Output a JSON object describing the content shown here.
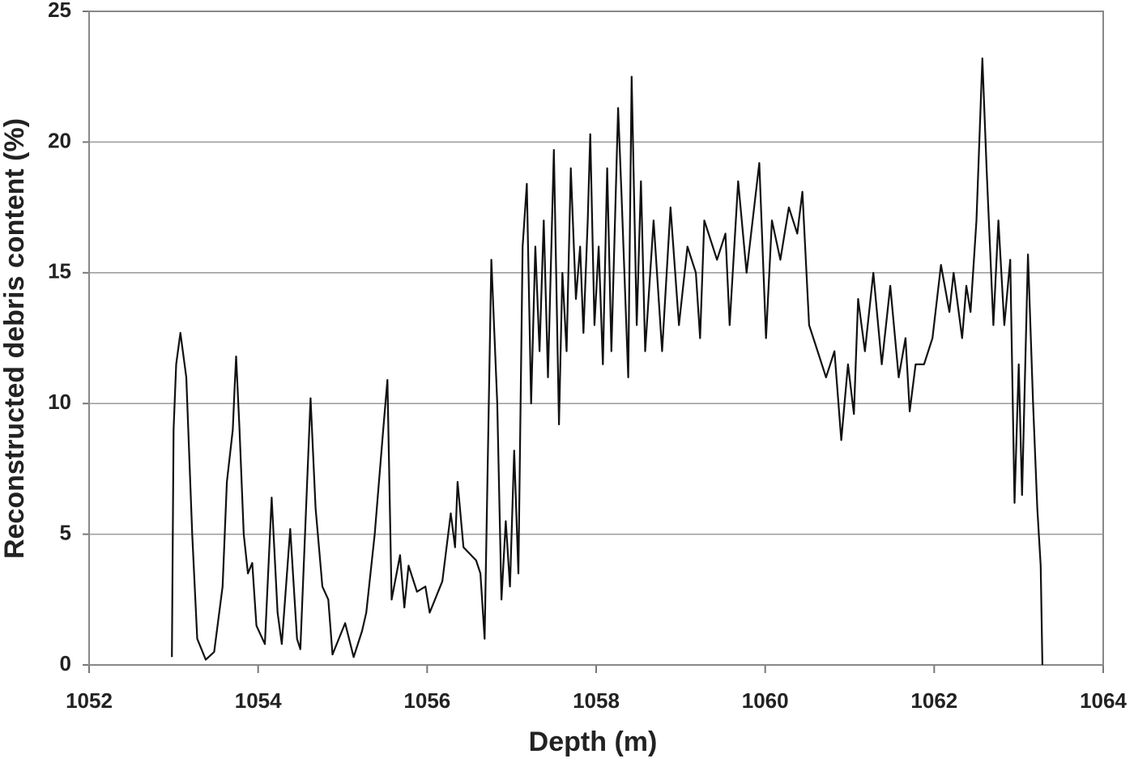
{
  "chart_data": {
    "type": "line",
    "xlabel": "Depth (m)",
    "ylabel": "Reconstructed debris content (%)",
    "xlim": [
      1052,
      1064
    ],
    "xticks": [
      1052,
      1054,
      1056,
      1058,
      1060,
      1062,
      1064
    ],
    "ylim": [
      0,
      25
    ],
    "yticks": [
      0,
      5,
      10,
      15,
      20,
      25
    ],
    "grid": true,
    "x": [
      1052.98,
      1053.0,
      1053.03,
      1053.08,
      1053.15,
      1053.22,
      1053.28,
      1053.38,
      1053.48,
      1053.58,
      1053.63,
      1053.7,
      1053.72,
      1053.74,
      1053.78,
      1053.83,
      1053.88,
      1053.93,
      1053.98,
      1054.08,
      1054.16,
      1054.23,
      1054.28,
      1054.38,
      1054.46,
      1054.5,
      1054.58,
      1054.62,
      1054.68,
      1054.76,
      1054.83,
      1054.88,
      1055.03,
      1055.13,
      1055.23,
      1055.28,
      1055.38,
      1055.48,
      1055.53,
      1055.58,
      1055.68,
      1055.73,
      1055.78,
      1055.88,
      1055.98,
      1056.03,
      1056.18,
      1056.28,
      1056.33,
      1056.36,
      1056.43,
      1056.58,
      1056.63,
      1056.68,
      1056.76,
      1056.83,
      1056.88,
      1056.93,
      1056.98,
      1057.03,
      1057.08,
      1057.13,
      1057.18,
      1057.23,
      1057.28,
      1057.33,
      1057.38,
      1057.43,
      1057.5,
      1057.56,
      1057.6,
      1057.65,
      1057.7,
      1057.76,
      1057.81,
      1057.85,
      1057.9,
      1057.93,
      1057.98,
      1058.03,
      1058.08,
      1058.13,
      1058.18,
      1058.26,
      1058.3,
      1058.38,
      1058.42,
      1058.48,
      1058.53,
      1058.58,
      1058.68,
      1058.78,
      1058.88,
      1058.98,
      1059.08,
      1059.18,
      1059.23,
      1059.28,
      1059.43,
      1059.53,
      1059.58,
      1059.68,
      1059.78,
      1059.93,
      1060.01,
      1060.08,
      1060.18,
      1060.28,
      1060.38,
      1060.44,
      1060.52,
      1060.62,
      1060.72,
      1060.82,
      1060.9,
      1060.98,
      1061.05,
      1061.1,
      1061.18,
      1061.28,
      1061.38,
      1061.48,
      1061.58,
      1061.66,
      1061.71,
      1061.78,
      1061.88,
      1061.98,
      1062.08,
      1062.18,
      1062.23,
      1062.33,
      1062.38,
      1062.43,
      1062.5,
      1062.57,
      1062.62,
      1062.7,
      1062.76,
      1062.83,
      1062.9,
      1062.95,
      1063.0,
      1063.04,
      1063.11,
      1063.17,
      1063.22,
      1063.26,
      1063.28
    ],
    "series": [
      {
        "name": "Reconstructed debris content",
        "color": "#111111",
        "values": [
          0.3,
          9,
          11.5,
          12.7,
          11,
          5,
          1,
          0.2,
          0.5,
          3,
          7,
          9,
          10.5,
          11.8,
          9,
          5,
          3.5,
          3.9,
          1.5,
          0.8,
          6.4,
          2,
          0.8,
          5.2,
          1,
          0.6,
          7,
          10.2,
          6,
          3,
          2.5,
          0.4,
          1.6,
          0.3,
          1.3,
          2,
          5,
          9,
          10.9,
          2.5,
          4.2,
          2.2,
          3.8,
          2.8,
          3,
          2,
          3.2,
          5.8,
          4.5,
          7,
          4.5,
          4,
          3.5,
          1,
          15.5,
          10,
          2.5,
          5.5,
          3,
          8.2,
          3.5,
          16,
          18.4,
          10,
          16,
          12,
          17,
          11,
          19.7,
          9.2,
          15,
          12,
          19,
          14,
          16,
          12.7,
          17,
          20.3,
          13,
          16,
          11.5,
          19,
          12,
          21.3,
          18,
          11,
          22.5,
          13,
          18.5,
          12,
          17,
          12,
          17.5,
          13,
          16,
          15,
          12.5,
          17,
          15.5,
          16.5,
          13,
          18.5,
          15,
          19.2,
          12.5,
          17,
          15.5,
          17.5,
          16.5,
          18.1,
          13,
          12,
          11,
          12,
          8.6,
          11.5,
          9.6,
          14,
          12,
          15,
          11.5,
          14.5,
          11,
          12.5,
          9.7,
          11.5,
          11.5,
          12.5,
          15.3,
          13.5,
          15,
          12.5,
          14.5,
          13.5,
          17,
          23.2,
          19,
          13,
          17,
          13,
          15.5,
          6.2,
          11.5,
          6.5,
          15.7,
          10,
          6,
          3.8,
          0
        ]
      }
    ]
  }
}
